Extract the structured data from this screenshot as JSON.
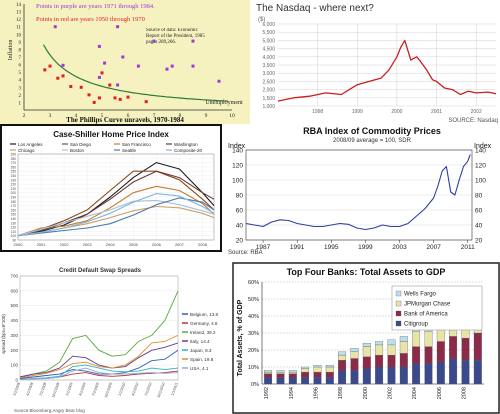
{
  "chart_data": [
    {
      "id": "phillips",
      "type": "scatter",
      "title": "The Phillips Curve unravels, 1970-1984",
      "note_purple": "Points in purple are years 1971 through 1984.",
      "note_red": "Points in red are years 1950 through 1970",
      "source": "Source of data: Economic Report of the President, 1985 pages 289,266.",
      "ylabel": "Inflation",
      "xlabel": "Unemployment",
      "xlim": [
        2,
        10
      ],
      "ylim": [
        0,
        14
      ],
      "xticks": [
        "2",
        "3",
        "4",
        "5",
        "6",
        "7",
        "8",
        "9",
        "10"
      ],
      "yticks": [
        "1",
        "2",
        "3",
        "4",
        "5",
        "6",
        "7",
        "8",
        "9",
        "10",
        "11",
        "12",
        "13",
        "14"
      ],
      "colors": {
        "background": "#f6f2bf",
        "curve": "#2c7a3a",
        "red_points": "#e02020",
        "purple_points": "#9b3bd8"
      },
      "series": [
        {
          "points": [
            [
              2.8,
              5.3
            ],
            [
              3.0,
              5.8
            ],
            [
              3.3,
              4.2
            ],
            [
              3.5,
              4.5
            ],
            [
              3.8,
              3.1
            ],
            [
              4.2,
              3.0
            ],
            [
              4.5,
              2.0
            ],
            [
              4.9,
              1.6
            ],
            [
              5.3,
              3.3
            ],
            [
              5.5,
              1.6
            ],
            [
              5.7,
              1.4
            ],
            [
              6.0,
              1.7
            ],
            [
              6.7,
              1.1
            ],
            [
              5.0,
              4.9
            ],
            [
              4.7,
              1.0
            ]
          ]
        },
        {
          "points": [
            [
              3.5,
              5.9
            ],
            [
              4.9,
              4.3
            ],
            [
              5.6,
              3.3
            ],
            [
              5.1,
              6.2
            ],
            [
              5.6,
              11.0
            ],
            [
              6.4,
              5.8
            ],
            [
              7.0,
              9.1
            ],
            [
              7.7,
              5.8
            ],
            [
              8.5,
              9.1
            ],
            [
              8.5,
              5.8
            ],
            [
              7.5,
              5.4
            ],
            [
              5.8,
              7.0
            ],
            [
              4.9,
              8.4
            ],
            [
              3.2,
              11.0
            ],
            [
              9.5,
              3.8
            ]
          ]
        }
      ]
    },
    {
      "id": "nasdaq",
      "type": "line",
      "title": "The Nasdaq - where next?",
      "ylabel": "($)",
      "source": "SOURCE: Nasdaq",
      "ylim": [
        1000,
        6000
      ],
      "yticks": [
        "6,000",
        "5,500",
        "5,000",
        "4,500",
        "4,000",
        "3,500",
        "3,000",
        "2,500",
        "2,000",
        "1,500",
        "1,000"
      ],
      "xticks": [
        "1998",
        "1999",
        "2000",
        "2001",
        "2002"
      ],
      "colors": {
        "line": "#cc1d1d",
        "grid": "#c8c8c8"
      },
      "x": [
        1997.0,
        1997.4,
        1997.8,
        1998.2,
        1998.6,
        1998.8,
        1999.0,
        1999.3,
        1999.6,
        1999.8,
        2000.0,
        2000.1,
        2000.2,
        2000.35,
        2000.5,
        2000.6,
        2000.75,
        2000.9,
        2001.0,
        2001.2,
        2001.4,
        2001.6,
        2001.8,
        2002.0,
        2002.3,
        2002.5
      ],
      "values": [
        1300,
        1500,
        1600,
        1800,
        1700,
        2000,
        2300,
        2500,
        2700,
        3200,
        4000,
        4600,
        5000,
        3800,
        4000,
        3700,
        3200,
        2600,
        2500,
        2100,
        2000,
        1700,
        1900,
        1800,
        1850,
        1750
      ]
    },
    {
      "id": "case_shiller",
      "type": "line",
      "title": "Case-Shiller Home Price Index",
      "xticks": [
        "2000",
        "2001",
        "2002",
        "2003",
        "2004",
        "2005",
        "2006",
        "2007",
        "2008"
      ],
      "yticks": [
        "290",
        "280",
        "270",
        "260",
        "250",
        "240",
        "230",
        "220",
        "210",
        "200",
        "190",
        "180",
        "170",
        "160",
        "150",
        "140",
        "130",
        "120",
        "110",
        "100",
        "90"
      ],
      "ylim": [
        90,
        290
      ],
      "x": [
        2000,
        2001,
        2002,
        2003,
        2004,
        2005,
        2006,
        2007,
        2008,
        2008.5
      ],
      "series": [
        {
          "name": "Los Angeles",
          "color": "#1b1b1b",
          "values": [
            100,
            110,
            125,
            150,
            190,
            235,
            270,
            255,
            200,
            170
          ]
        },
        {
          "name": "San Diego",
          "color": "#8b4a1c",
          "values": [
            100,
            115,
            135,
            160,
            205,
            250,
            250,
            230,
            185,
            160
          ]
        },
        {
          "name": "San Francisco",
          "color": "#c77a2c",
          "values": [
            100,
            118,
            122,
            135,
            165,
            200,
            215,
            205,
            175,
            150
          ]
        },
        {
          "name": "Washington",
          "color": "#6b3a3a",
          "values": [
            100,
            112,
            130,
            150,
            185,
            225,
            250,
            235,
            200,
            185
          ]
        },
        {
          "name": "Chicago",
          "color": "#c9a06a",
          "values": [
            100,
            108,
            118,
            128,
            142,
            158,
            168,
            165,
            152,
            142
          ]
        },
        {
          "name": "Boston",
          "color": "#a9c0d9",
          "values": [
            100,
            115,
            130,
            145,
            160,
            180,
            182,
            172,
            158,
            150
          ]
        },
        {
          "name": "Seattle",
          "color": "#4a7ab0",
          "values": [
            100,
            106,
            112,
            118,
            128,
            148,
            172,
            188,
            178,
            160
          ]
        },
        {
          "name": "Composite-20",
          "color": "#7fb6e0",
          "values": [
            100,
            108,
            118,
            132,
            152,
            178,
            198,
            192,
            168,
            152
          ]
        }
      ]
    },
    {
      "id": "rba",
      "type": "line",
      "title": "RBA Index of Commodity Prices",
      "subtitle": "2008/09 average = 100, SDR",
      "ylabel_left": "Index",
      "ylabel_right": "Index",
      "source": "Source: RBA",
      "ylim": [
        20,
        140
      ],
      "yticks": [
        "140",
        "120",
        "100",
        "80",
        "60",
        "40",
        "20"
      ],
      "xticks": [
        "1987",
        "1991",
        "1995",
        "1999",
        "2003",
        "2007",
        "2011"
      ],
      "colors": {
        "line": "#2d3fa0",
        "grid": "#d0d0d0"
      },
      "x": [
        1985,
        1986,
        1987,
        1988,
        1989,
        1990,
        1991,
        1992,
        1993,
        1994,
        1995,
        1996,
        1997,
        1998,
        1999,
        2000,
        2001,
        2002,
        2003,
        2004,
        2005,
        2006,
        2007,
        2007.5,
        2008,
        2008.5,
        2009,
        2009.5,
        2010,
        2010.5,
        2011,
        2011.3
      ],
      "values": [
        42,
        40,
        38,
        44,
        47,
        46,
        42,
        40,
        38,
        38,
        40,
        42,
        41,
        36,
        34,
        36,
        40,
        38,
        38,
        42,
        52,
        62,
        76,
        92,
        112,
        118,
        84,
        80,
        100,
        118,
        125,
        134
      ]
    },
    {
      "id": "cds",
      "type": "line",
      "title": "Credit Default Swap Spreads",
      "ylabel": "spread (bps=¥*100)",
      "source": "Source:Bloomberg,Angry Bear blog",
      "ylim": [
        0,
        700
      ],
      "yticks": [
        "700",
        "600",
        "500",
        "400",
        "300",
        "200",
        "100",
        "0"
      ],
      "xticks": [
        "1/1/2008",
        "4/1/2008",
        "7/1/2008",
        "10/1/2008",
        "1/1/2009",
        "4/1/2009",
        "7/1/2009",
        "10/1/2009",
        "1/1/2010",
        "4/1/2010",
        "7/1/2010",
        "10/1/2010",
        "1/1/2011"
      ],
      "x": [
        0,
        1,
        2,
        3,
        4,
        5,
        6,
        7,
        8,
        9,
        10,
        11,
        12
      ],
      "series": [
        {
          "name": "Belgium, 13.8",
          "color": "#2f5fb8",
          "values": [
            10,
            20,
            30,
            40,
            70,
            60,
            40,
            40,
            50,
            80,
            130,
            140,
            200
          ]
        },
        {
          "name": "Germany, 4.6",
          "color": "#b8382f",
          "values": [
            5,
            8,
            10,
            20,
            40,
            50,
            30,
            25,
            30,
            40,
            45,
            50,
            60
          ]
        },
        {
          "name": "Ireland, 39.2",
          "color": "#5aa83f",
          "values": [
            20,
            40,
            60,
            120,
            280,
            300,
            200,
            160,
            170,
            260,
            300,
            400,
            600
          ]
        },
        {
          "name": "Italy, 14.4",
          "color": "#6a3c8f",
          "values": [
            20,
            40,
            50,
            80,
            160,
            150,
            100,
            80,
            90,
            150,
            200,
            220,
            250
          ]
        },
        {
          "name": "Japan, 8.3",
          "color": "#2eb0c8",
          "values": [
            5,
            10,
            15,
            25,
            90,
            100,
            80,
            60,
            55,
            60,
            80,
            70,
            80
          ]
        },
        {
          "name": "Spain, 19.8",
          "color": "#e68a2e",
          "values": [
            15,
            30,
            45,
            70,
            110,
            120,
            90,
            80,
            100,
            160,
            250,
            260,
            300
          ]
        },
        {
          "name": "USA, 4.1",
          "color": "#8aa8d8",
          "values": [
            5,
            8,
            10,
            20,
            60,
            80,
            50,
            40,
            40,
            45,
            50,
            45,
            50
          ]
        }
      ]
    },
    {
      "id": "banks",
      "type": "bar",
      "title": "Top Four Banks: Total Assets to GDP",
      "ylabel": "Total Assets, % of GDP",
      "ylim": [
        0,
        60
      ],
      "yticks": [
        "60%",
        "50%",
        "40%",
        "30%",
        "20%",
        "10%",
        "0%"
      ],
      "categories": [
        "1992",
        "1993",
        "1994",
        "1995",
        "1996",
        "1997",
        "1998",
        "1999",
        "2000",
        "2001",
        "2002",
        "2003",
        "2004",
        "2005",
        "2006",
        "2007",
        "2008",
        "2009"
      ],
      "xticks": [
        "1992",
        "1994",
        "1996",
        "1998",
        "2000",
        "2002",
        "2004",
        "2006",
        "2008"
      ],
      "series": [
        {
          "name": "Citigroup",
          "color": "#3a4a8c",
          "values": [
            4,
            4,
            4,
            4,
            4,
            4,
            8,
            8,
            9,
            10,
            10,
            10,
            12,
            12,
            13,
            15,
            14,
            14
          ]
        },
        {
          "name": "Bank of America",
          "color": "#8c2a4a",
          "values": [
            2,
            2,
            2,
            3,
            3,
            3,
            6,
            7,
            7,
            7,
            7,
            8,
            10,
            10,
            12,
            13,
            13,
            16
          ]
        },
        {
          "name": "JPMorgan Chase",
          "color": "#e8e4a8",
          "values": [
            1,
            1,
            1,
            2,
            3,
            3,
            3,
            4,
            6,
            6,
            6,
            7,
            9,
            9,
            10,
            10,
            13,
            14
          ]
        },
        {
          "name": "Wells Fargo",
          "color": "#b9e0f0",
          "values": [
            1,
            1,
            1,
            1,
            1,
            1,
            2,
            2,
            2,
            2,
            3,
            3,
            3,
            3,
            3,
            4,
            8,
            9
          ]
        }
      ]
    }
  ]
}
